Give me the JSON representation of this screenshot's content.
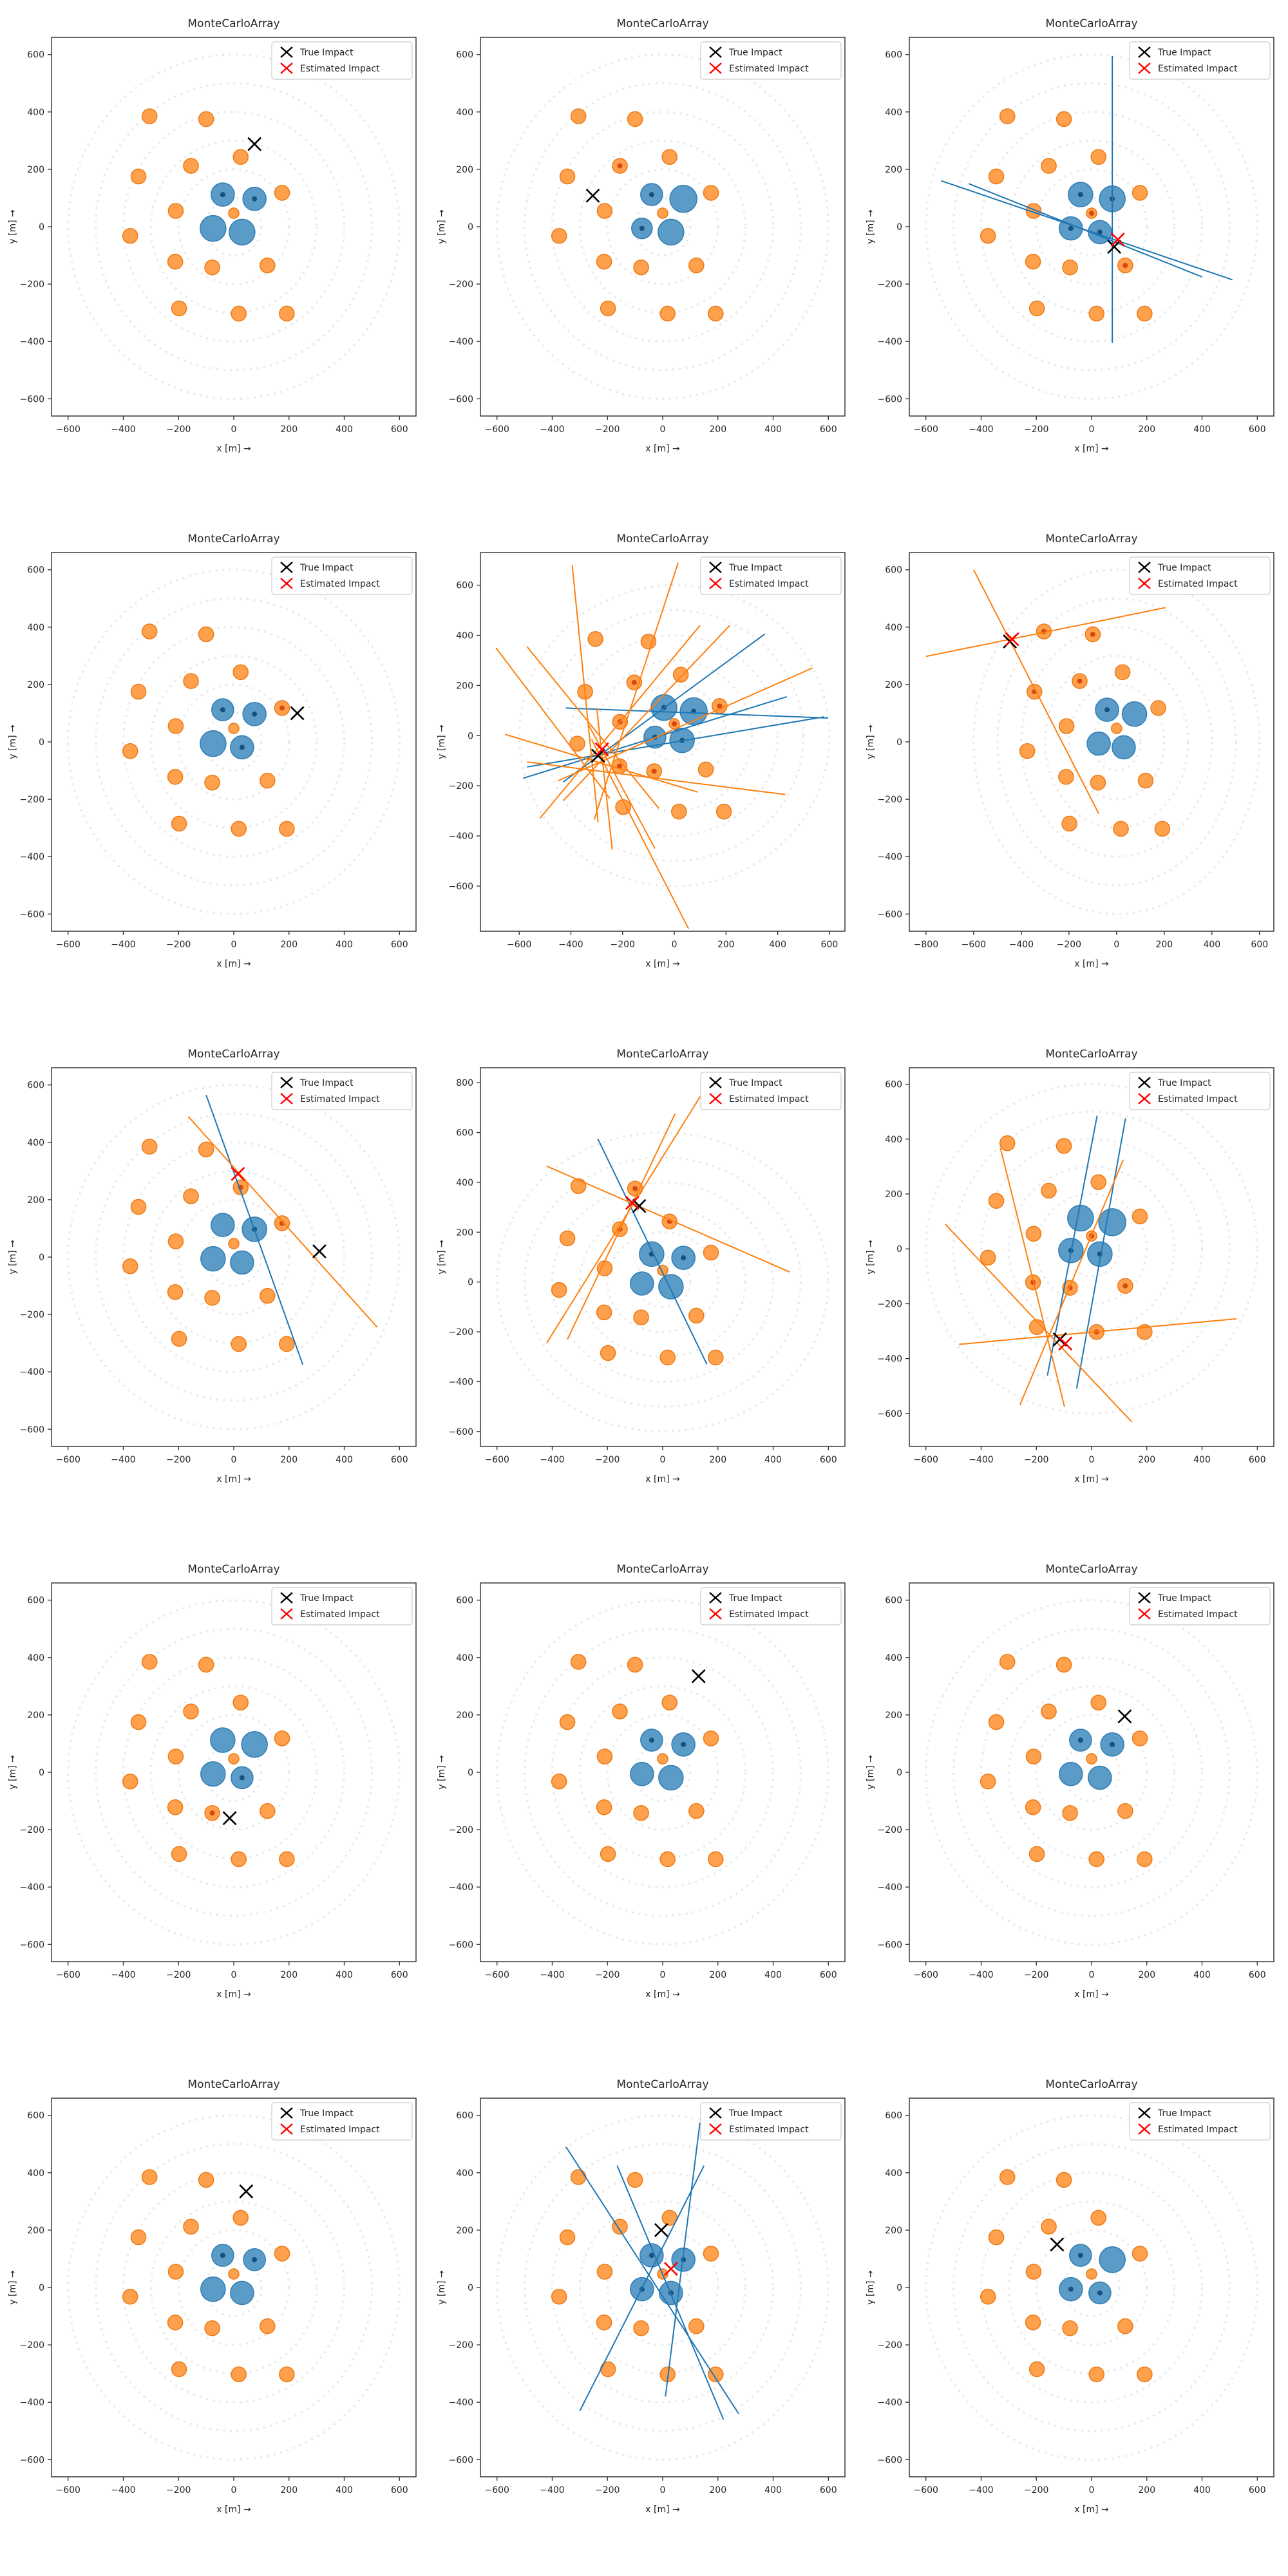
{
  "chart_data": {
    "type": "scatter",
    "title": "MonteCarloArray",
    "xlabel": "x [m]  →",
    "ylabel": "y [m]  →",
    "legend": [
      {
        "label": "True Impact",
        "color": "#000000"
      },
      {
        "label": "Estimated Impact",
        "color": "#ff0000"
      }
    ],
    "colors": {
      "orange_fill": "#ffa04d",
      "orange_edge": "#ee7d18",
      "orange_dot": "#d9480f",
      "blue_fill": "#5b9bc8",
      "blue_edge": "#3380b5",
      "blue_dot": "#16527f",
      "line_blue": "#1f77b4",
      "line_orange": "#ff7f0e",
      "true_impact": "#000000",
      "estimated_impact": "#ff0000",
      "ring": "#e8e8e8",
      "axes": "#2b2b2b"
    },
    "grid_rings_radii_m": [
      100,
      200,
      300,
      400,
      500,
      600
    ],
    "default_xticks": [
      -600,
      -400,
      -200,
      0,
      200,
      400,
      600
    ],
    "default_yticks": [
      -600,
      -400,
      -200,
      0,
      200,
      400,
      600
    ],
    "array": {
      "small_station_index": 7,
      "outer_stations": [
        [
          -305,
          385
        ],
        [
          -100,
          375
        ],
        [
          25,
          243
        ],
        [
          -155,
          212
        ],
        [
          -345,
          175
        ],
        [
          175,
          118
        ],
        [
          -210,
          55
        ],
        [
          0,
          47
        ],
        [
          -375,
          -32
        ],
        [
          -212,
          -122
        ],
        [
          -78,
          -142
        ],
        [
          122,
          -135
        ],
        [
          -198,
          -285
        ],
        [
          18,
          -303
        ],
        [
          192,
          -303
        ]
      ],
      "core_stations": [
        [
          -40,
          112
        ],
        [
          75,
          97
        ],
        [
          -75,
          -6
        ],
        [
          30,
          -19
        ]
      ]
    },
    "panels": [
      {
        "row": 1,
        "col": 1,
        "xlim": [
          -660,
          660
        ],
        "ylim": [
          -660,
          660
        ],
        "true_impact": [
          75,
          288
        ],
        "estimated_impact": null,
        "core_sizes": [
          18,
          18,
          20,
          20
        ],
        "core_dots": [
          0,
          1
        ],
        "outer_dots": [],
        "lines": {
          "blue": [],
          "orange": []
        }
      },
      {
        "row": 1,
        "col": 2,
        "xlim": [
          -660,
          660
        ],
        "ylim": [
          -660,
          660
        ],
        "true_impact": [
          -253,
          108
        ],
        "estimated_impact": null,
        "core_sizes": [
          17,
          21,
          16,
          20
        ],
        "core_dots": [
          0,
          2
        ],
        "outer_dots": [
          3
        ],
        "lines": {
          "blue": [],
          "orange": []
        }
      },
      {
        "row": 1,
        "col": 3,
        "xlim": [
          -660,
          660
        ],
        "ylim": [
          -660,
          660
        ],
        "true_impact": [
          82,
          -70
        ],
        "estimated_impact": [
          95,
          -45
        ],
        "core_sizes": [
          19,
          20,
          18,
          18
        ],
        "core_dots": [
          0,
          1,
          2,
          3
        ],
        "outer_dots": [
          7,
          11
        ],
        "lines": {
          "blue": [
            [
              75,
              595,
              75,
              -405
            ],
            [
              -545,
              160,
              510,
              -185
            ],
            [
              -445,
              150,
              400,
              -175
            ]
          ],
          "orange": []
        }
      },
      {
        "row": 2,
        "col": 1,
        "xlim": [
          -660,
          660
        ],
        "ylim": [
          -660,
          660
        ],
        "true_impact": [
          230,
          100
        ],
        "estimated_impact": null,
        "core_sizes": [
          17,
          18,
          20,
          18
        ],
        "core_dots": [
          0,
          1,
          3
        ],
        "outer_dots": [
          5
        ],
        "lines": {
          "blue": [],
          "orange": []
        }
      },
      {
        "row": 2,
        "col": 2,
        "xlim": [
          -750,
          660
        ],
        "ylim": [
          -780,
          730
        ],
        "true_impact": [
          -295,
          -80
        ],
        "estimated_impact": [
          -280,
          -55
        ],
        "core_sizes": [
          20,
          21,
          17,
          19
        ],
        "core_dots": [
          0,
          1,
          2,
          3
        ],
        "outer_dots": [
          3,
          5,
          6,
          7,
          9,
          10
        ],
        "lines": {
          "blue": [
            [
              -430,
              -185,
              350,
              405
            ],
            [
              -420,
              110,
              595,
              70
            ],
            [
              -585,
              -170,
              435,
              155
            ],
            [
              -570,
              -125,
              580,
              75
            ]
          ],
          "orange": [
            [
              -395,
              680,
              -295,
              -345
            ],
            [
              15,
              690,
              -310,
              -335
            ],
            [
              100,
              440,
              -520,
              -330
            ],
            [
              -690,
              350,
              -250,
              -250
            ],
            [
              -655,
              5,
              90,
              -225
            ],
            [
              -570,
              -105,
              430,
              -235
            ],
            [
              -450,
              -180,
              535,
              270
            ],
            [
              55,
              -770,
              -320,
              -15
            ],
            [
              -75,
              -450,
              -330,
              40
            ],
            [
              -240,
              -455,
              -300,
              110
            ],
            [
              -570,
              355,
              -60,
              -290
            ],
            [
              215,
              440,
              -430,
              -260
            ]
          ]
        }
      },
      {
        "row": 2,
        "col": 3,
        "xlim": [
          -870,
          660
        ],
        "ylim": [
          -660,
          660
        ],
        "xticks": [
          -800,
          -600,
          -400,
          -200,
          0,
          200,
          400,
          600
        ],
        "true_impact": [
          -448,
          350
        ],
        "estimated_impact": [
          -438,
          358
        ],
        "core_sizes": [
          18,
          19,
          18,
          18
        ],
        "core_dots": [
          0
        ],
        "outer_dots": [
          0,
          1,
          3,
          4
        ],
        "lines": {
          "blue": [],
          "orange": [
            [
              -600,
              600,
              -75,
              -250
            ],
            [
              -800,
              298,
              205,
              468
            ]
          ]
        }
      },
      {
        "row": 3,
        "col": 1,
        "xlim": [
          -660,
          660
        ],
        "ylim": [
          -660,
          660
        ],
        "true_impact": [
          310,
          20
        ],
        "estimated_impact": [
          15,
          290
        ],
        "core_sizes": [
          18,
          19,
          19,
          18
        ],
        "core_dots": [
          1
        ],
        "outer_dots": [
          2,
          5
        ],
        "lines": {
          "blue": [
            [
              -100,
              565,
              250,
              -375
            ]
          ],
          "orange": [
            [
              -165,
              490,
              520,
              -245
            ]
          ]
        }
      },
      {
        "row": 3,
        "col": 2,
        "xlim": [
          -660,
          660
        ],
        "ylim": [
          -660,
          860
        ],
        "yticks": [
          -600,
          -400,
          -200,
          0,
          200,
          400,
          600,
          800
        ],
        "true_impact": [
          -85,
          305
        ],
        "estimated_impact": [
          -110,
          318
        ],
        "core_sizes": [
          19,
          18,
          18,
          19
        ],
        "core_dots": [
          0,
          1
        ],
        "outer_dots": [
          1,
          2,
          3
        ],
        "lines": {
          "blue": [
            [
              -235,
              575,
              160,
              -330
            ]
          ],
          "orange": [
            [
              -420,
              465,
              460,
              40
            ],
            [
              45,
              675,
              -345,
              -230
            ],
            [
              170,
              805,
              -420,
              -245
            ]
          ]
        }
      },
      {
        "row": 3,
        "col": 3,
        "xlim": [
          -660,
          660
        ],
        "ylim": [
          -720,
          660
        ],
        "true_impact": [
          -115,
          -330
        ],
        "estimated_impact": [
          -95,
          -345
        ],
        "core_sizes": [
          20,
          21,
          19,
          19
        ],
        "core_dots": [
          2,
          3
        ],
        "outer_dots": [
          7,
          9,
          10,
          11,
          13
        ],
        "lines": {
          "blue": [
            [
              20,
              485,
              -160,
              -462
            ],
            [
              123,
              476,
              -54,
              -509
            ]
          ],
          "orange": [
            [
              -330,
              367,
              -98,
              -576
            ],
            [
              -530,
              90,
              145,
              -630
            ],
            [
              -480,
              -348,
              525,
              -255
            ],
            [
              115,
              325,
              -260,
              -570
            ]
          ]
        }
      },
      {
        "row": 4,
        "col": 1,
        "xlim": [
          -660,
          660
        ],
        "ylim": [
          -660,
          660
        ],
        "true_impact": [
          -15,
          -160
        ],
        "estimated_impact": null,
        "core_sizes": [
          19,
          20,
          19,
          17
        ],
        "core_dots": [
          3
        ],
        "outer_dots": [
          10
        ],
        "lines": {
          "blue": [],
          "orange": []
        }
      },
      {
        "row": 4,
        "col": 2,
        "xlim": [
          -660,
          660
        ],
        "ylim": [
          -660,
          660
        ],
        "true_impact": [
          130,
          335
        ],
        "estimated_impact": null,
        "core_sizes": [
          17,
          18,
          18,
          19
        ],
        "core_dots": [
          0,
          1
        ],
        "outer_dots": [],
        "lines": {
          "blue": [],
          "orange": []
        }
      },
      {
        "row": 4,
        "col": 3,
        "xlim": [
          -660,
          660
        ],
        "ylim": [
          -660,
          660
        ],
        "true_impact": [
          120,
          195
        ],
        "estimated_impact": null,
        "core_sizes": [
          17,
          18,
          18,
          18
        ],
        "core_dots": [
          0,
          1
        ],
        "outer_dots": [],
        "lines": {
          "blue": [],
          "orange": []
        }
      },
      {
        "row": 5,
        "col": 1,
        "xlim": [
          -660,
          660
        ],
        "ylim": [
          -660,
          660
        ],
        "true_impact": [
          45,
          335
        ],
        "estimated_impact": null,
        "core_sizes": [
          17,
          17,
          19,
          18
        ],
        "core_dots": [
          0,
          1
        ],
        "outer_dots": [],
        "lines": {
          "blue": [],
          "orange": []
        }
      },
      {
        "row": 5,
        "col": 2,
        "xlim": [
          -660,
          660
        ],
        "ylim": [
          -660,
          660
        ],
        "true_impact": [
          -5,
          200
        ],
        "estimated_impact": [
          30,
          65
        ],
        "core_sizes": [
          18,
          18,
          18,
          18
        ],
        "core_dots": [
          0,
          1,
          2,
          3
        ],
        "outer_dots": [],
        "lines": {
          "blue": [
            [
              135,
              575,
              10,
              -380
            ],
            [
              -165,
              425,
              220,
              -460
            ],
            [
              -350,
              490,
              275,
              -440
            ],
            [
              -300,
              -430,
              150,
              425
            ]
          ],
          "orange": []
        }
      },
      {
        "row": 5,
        "col": 3,
        "xlim": [
          -660,
          660
        ],
        "ylim": [
          -660,
          660
        ],
        "true_impact": [
          -125,
          150
        ],
        "estimated_impact": null,
        "core_sizes": [
          17,
          20,
          18,
          17
        ],
        "core_dots": [
          0,
          2,
          3
        ],
        "outer_dots": [],
        "lines": {
          "blue": [],
          "orange": []
        }
      }
    ]
  }
}
